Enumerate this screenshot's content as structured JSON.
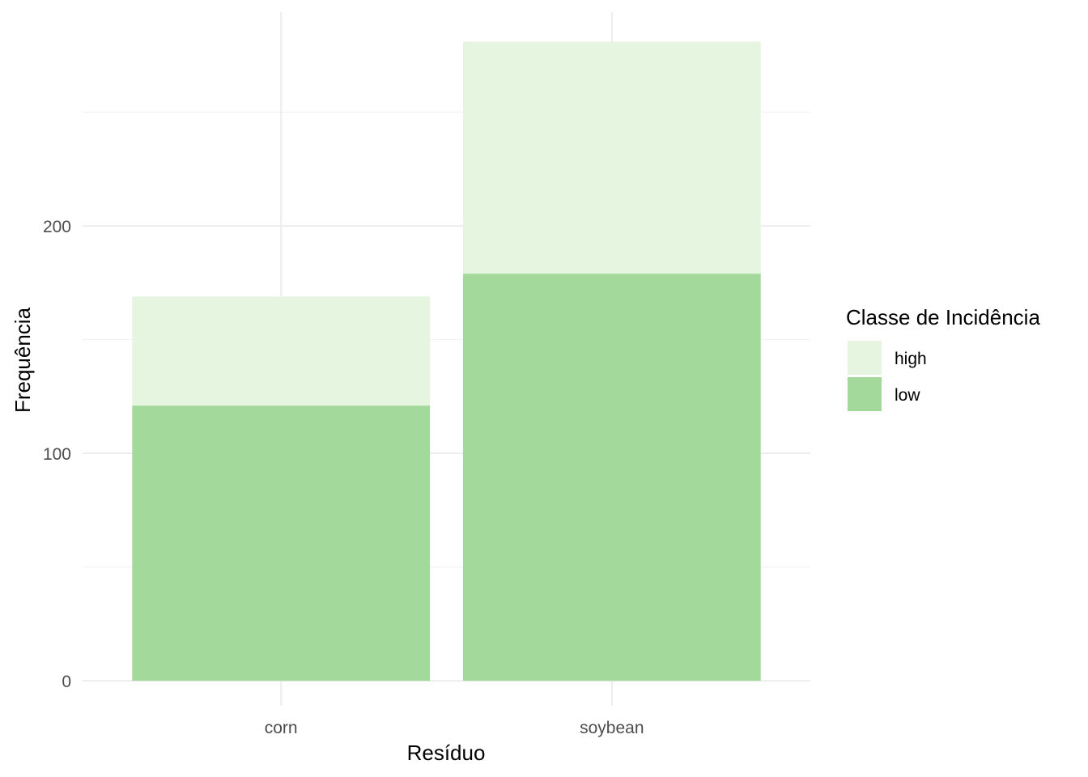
{
  "chart_data": {
    "type": "bar",
    "stacked": true,
    "categories": [
      "corn",
      "soybean"
    ],
    "series": [
      {
        "name": "low",
        "values": [
          121,
          179
        ],
        "color": "#A3D99A"
      },
      {
        "name": "high",
        "values": [
          48,
          102
        ],
        "color": "#E5F5E0"
      }
    ],
    "xlabel": "Resíduo",
    "ylabel": "Frequência",
    "y_ticks": [
      0,
      100,
      200
    ],
    "ylim": [
      -11,
      294
    ],
    "grid": true,
    "legend": {
      "title": "Classe de Incidência",
      "placement": "right",
      "items": [
        {
          "label": "high",
          "color": "#E5F5E0"
        },
        {
          "label": "low",
          "color": "#A3D99A"
        }
      ]
    }
  }
}
